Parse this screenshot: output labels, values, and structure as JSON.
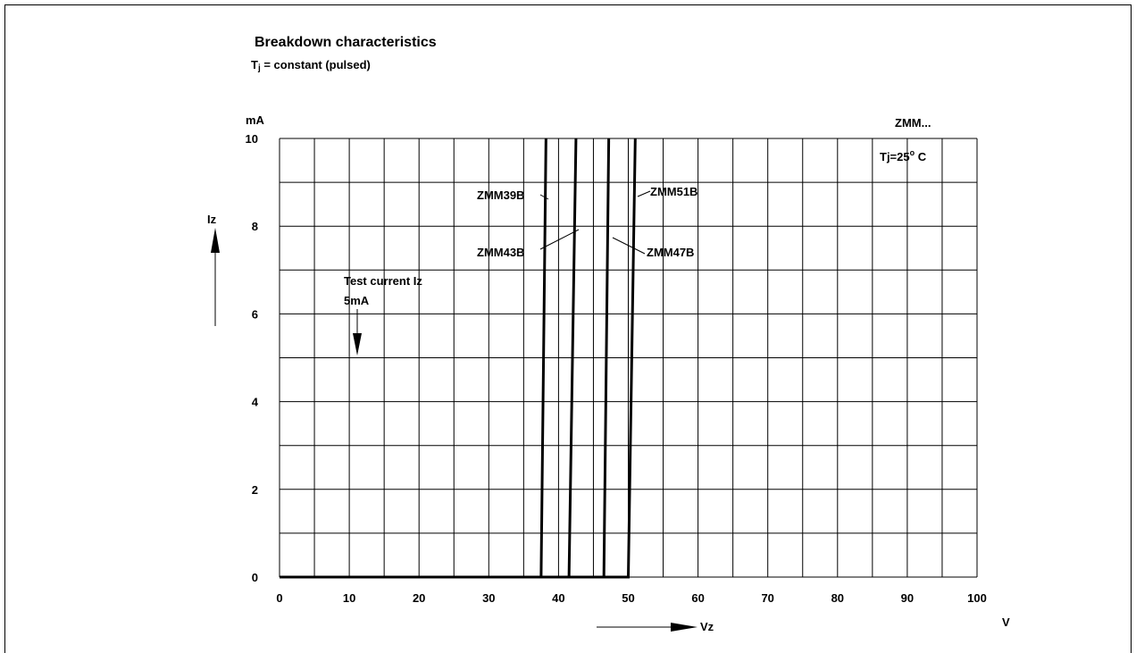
{
  "chart_data": {
    "type": "line",
    "title": "Breakdown characteristics",
    "subtitle_prefix": "T",
    "subtitle_sub": "j",
    "subtitle_suffix": " = constant (pulsed)",
    "xlabel": "Vz",
    "x_unit": "V",
    "ylabel": "Iz",
    "y_unit": "mA",
    "xlim": [
      0,
      100
    ],
    "ylim": [
      0,
      10
    ],
    "x_ticks": [
      0,
      10,
      20,
      30,
      40,
      50,
      60,
      70,
      80,
      90,
      100
    ],
    "y_ticks": [
      0,
      2,
      4,
      6,
      8,
      10
    ],
    "grid": true,
    "series": [
      {
        "name": "ZMM39B",
        "x": [
          0,
          37.5,
          38.2
        ],
        "y": [
          0,
          0,
          10
        ]
      },
      {
        "name": "ZMM43B",
        "x": [
          0,
          41.5,
          42.5
        ],
        "y": [
          0,
          0,
          10
        ]
      },
      {
        "name": "ZMM47B",
        "x": [
          0,
          46.5,
          47.2
        ],
        "y": [
          0,
          0,
          10
        ]
      },
      {
        "name": "ZMM51B",
        "x": [
          0,
          50.0,
          51.0
        ],
        "y": [
          0,
          0,
          10
        ]
      }
    ],
    "reference_line": {
      "y": 5,
      "style": "dashed"
    },
    "annotations": {
      "test_current_line1": "Test current Iz",
      "test_current_line2": "5mA",
      "device_family": "ZMM...",
      "temp_prefix": "Tj=25",
      "temp_sup": "o",
      "temp_suffix": " C"
    }
  }
}
